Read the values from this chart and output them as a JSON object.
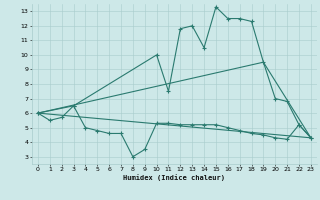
{
  "xlabel": "Humidex (Indice chaleur)",
  "xlim": [
    -0.5,
    23.5
  ],
  "ylim": [
    2.5,
    13.5
  ],
  "xticks": [
    0,
    1,
    2,
    3,
    4,
    5,
    6,
    7,
    8,
    9,
    10,
    11,
    12,
    13,
    14,
    15,
    16,
    17,
    18,
    19,
    20,
    21,
    22,
    23
  ],
  "yticks": [
    3,
    4,
    5,
    6,
    7,
    8,
    9,
    10,
    11,
    12,
    13
  ],
  "bg_color": "#cde8e8",
  "line_color": "#2a7a6f",
  "grid_color": "#a8cccc",
  "line1_x": [
    0,
    1,
    2,
    3,
    4,
    5,
    6,
    7,
    8,
    9,
    10,
    11,
    12,
    13,
    14,
    15,
    16,
    17,
    18,
    19,
    20,
    21,
    22,
    23
  ],
  "line1_y": [
    6.0,
    5.5,
    5.7,
    6.5,
    5.0,
    4.8,
    4.6,
    4.6,
    3.0,
    3.5,
    5.3,
    5.3,
    5.2,
    5.2,
    5.2,
    5.2,
    5.0,
    4.8,
    4.6,
    4.5,
    4.3,
    4.2,
    5.2,
    4.3
  ],
  "line2_x": [
    0,
    3,
    10,
    11,
    12,
    13,
    14,
    15,
    16,
    17,
    18,
    19,
    20,
    21,
    22,
    23
  ],
  "line2_y": [
    6.0,
    6.5,
    10.0,
    7.5,
    11.8,
    12.0,
    10.5,
    13.3,
    12.5,
    12.5,
    12.3,
    9.5,
    7.0,
    6.8,
    5.2,
    4.3
  ],
  "line3_x": [
    0,
    19,
    23
  ],
  "line3_y": [
    6.0,
    9.5,
    4.3
  ],
  "line4_x": [
    0,
    23
  ],
  "line4_y": [
    6.0,
    4.3
  ]
}
